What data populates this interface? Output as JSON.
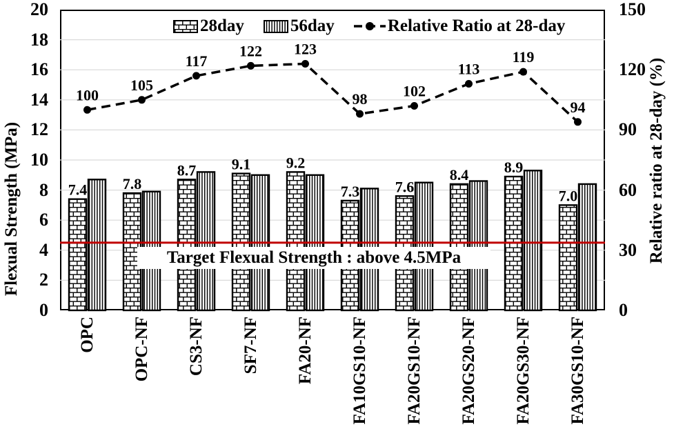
{
  "chart_data": {
    "type": "bar",
    "combo": "bar+line",
    "title": "",
    "categories": [
      "OPC",
      "OPC-NF",
      "CS3-NF",
      "SF7-NF",
      "FA20-NF",
      "FA10GS10-NF",
      "FA20GS10-NF",
      "FA20GS20-NF",
      "FA20GS30-NF",
      "FA30GS10-NF"
    ],
    "series": [
      {
        "name": "28day",
        "type": "bar",
        "pattern": "brick",
        "axis": "left",
        "values": [
          7.4,
          7.8,
          8.7,
          9.1,
          9.2,
          7.3,
          7.6,
          8.4,
          8.9,
          7.0
        ],
        "labels": [
          "7.4",
          "7.8",
          "8.7",
          "9.1",
          "9.2",
          "7.3",
          "7.6",
          "8.4",
          "8.9",
          "7.0"
        ]
      },
      {
        "name": "56day",
        "type": "bar",
        "pattern": "vertical-stripe",
        "axis": "left",
        "values": [
          8.7,
          7.9,
          9.2,
          9.0,
          9.0,
          8.1,
          8.5,
          8.6,
          9.3,
          8.4
        ],
        "labels": []
      },
      {
        "name": "Relative Ratio at 28-day",
        "type": "line",
        "style": "dashed-with-round-markers",
        "axis": "right",
        "values": [
          100,
          105,
          117,
          122,
          123,
          98,
          102,
          113,
          119,
          94
        ],
        "labels": [
          "100",
          "105",
          "117",
          "122",
          "123",
          "98",
          "102",
          "113",
          "119",
          "94"
        ]
      }
    ],
    "left_axis": {
      "title": "Flexual Strength (MPa)",
      "min": 0,
      "max": 20,
      "step": 2,
      "ticks": [
        "20",
        "18",
        "16",
        "14",
        "12",
        "10",
        "8",
        "6",
        "4",
        "2",
        "0"
      ]
    },
    "right_axis": {
      "title": "Relative ratio at 28-day (%)",
      "min": 0,
      "max": 150,
      "step": 30,
      "ticks": [
        "150",
        "120",
        "90",
        "60",
        "30",
        "0"
      ]
    },
    "target_line": {
      "value": 4.5,
      "label": "Target Flexual Strength : above 4.5MPa",
      "color": "#c00000"
    },
    "colors": {
      "ink": "#000000",
      "grid": "#d9d9d9",
      "background": "#ffffff",
      "target": "#c00000"
    },
    "legend_position": "top",
    "grid": true
  }
}
